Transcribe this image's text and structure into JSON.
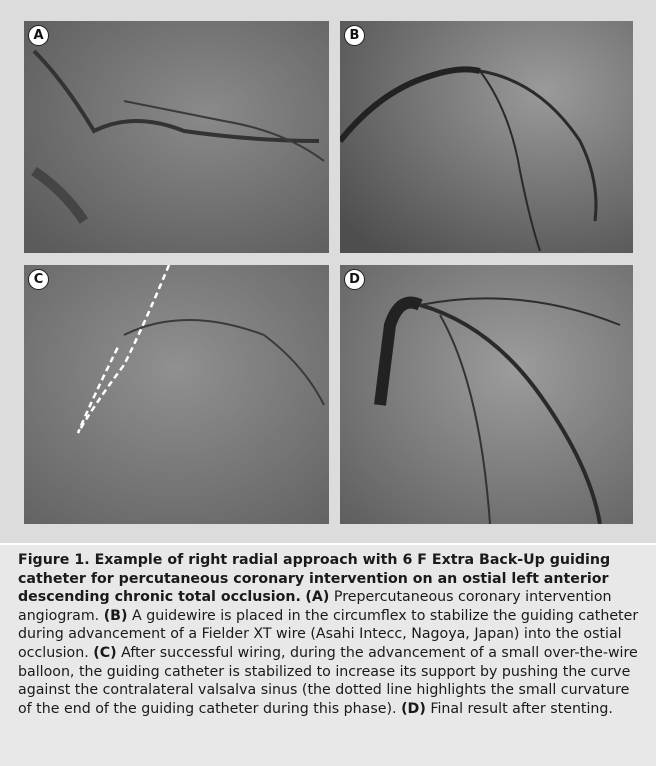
{
  "figure": {
    "panels": [
      {
        "label": "A"
      },
      {
        "label": "B"
      },
      {
        "label": "C"
      },
      {
        "label": "D"
      }
    ],
    "caption": {
      "title": "Figure 1. Example of right radial approach with 6 F Extra Back-Up guiding catheter for percutaneous coronary intervention on an ostial left anterior descending chronic total occlusion.",
      "items": [
        {
          "label": "(A)",
          "text": "Prepercutaneous coronary intervention angiogram."
        },
        {
          "label": "(B)",
          "text": "A guidewire is placed in the circumflex to stabilize the guiding catheter during advancement of a Fielder XT wire (Asahi Intecc, Nagoya, Japan) into the ostial occlusion."
        },
        {
          "label": "(C)",
          "text": "After successful wiring, during the advancement of a small over-the-wire balloon, the guiding catheter is stabilized to increase its support by pushing the curve against the contralateral valsalva sinus (the dotted line highlights the small curvature of the end of the guiding catheter during this phase)."
        },
        {
          "label": "(D)",
          "text": "Final result after stenting."
        }
      ]
    }
  }
}
